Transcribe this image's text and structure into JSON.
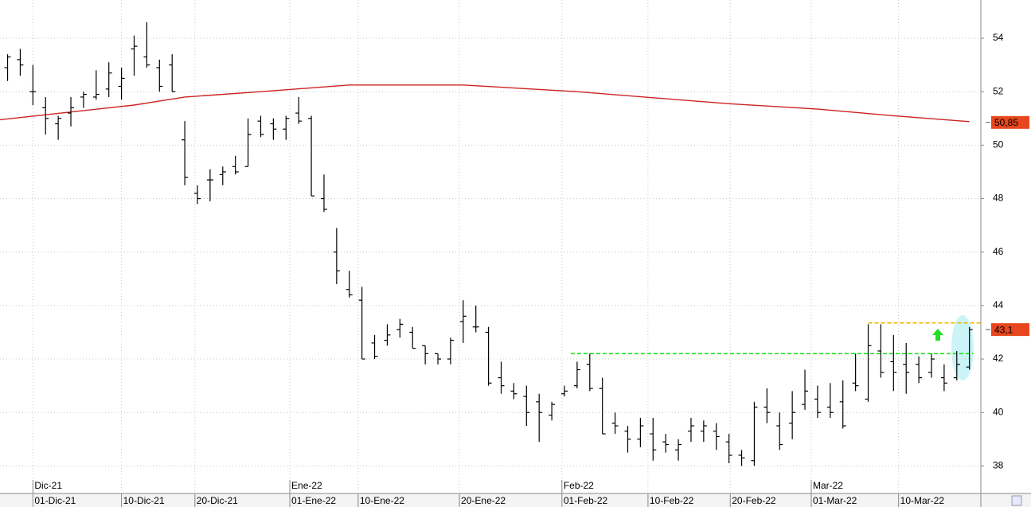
{
  "chart_data": {
    "type": "ohlc",
    "color": "#000000",
    "x": [
      0,
      1,
      2,
      3,
      4,
      5,
      6,
      7,
      8,
      9,
      10,
      11,
      12,
      13,
      14,
      15,
      16,
      17,
      18,
      19,
      20,
      21,
      22,
      23,
      24,
      25,
      26,
      27,
      28,
      29,
      30,
      31,
      32,
      33,
      34,
      35,
      36,
      37,
      38,
      39,
      40,
      41,
      42,
      43,
      44,
      45,
      46,
      47,
      48,
      49,
      50,
      51,
      52,
      53,
      54,
      55,
      56,
      57,
      58,
      59,
      60,
      61,
      62,
      63,
      64,
      65,
      66,
      67,
      68,
      69,
      70,
      71,
      72,
      73,
      74,
      75,
      76
    ],
    "open": [
      52.9,
      53.2,
      52.0,
      51.4,
      50.8,
      51.2,
      51.8,
      51.8,
      52.1,
      52.2,
      53.6,
      53.3,
      52.9,
      53.0,
      50.2,
      48.2,
      48.7,
      48.9,
      49.2,
      49.2,
      50.9,
      50.8,
      50.6,
      51.2,
      51.0,
      48.0,
      46.0,
      44.6,
      44.2,
      42.6,
      42.7,
      43.1,
      43.0,
      42.5,
      42.2,
      42.0,
      43.4,
      43.2,
      43.0,
      41.3,
      40.8,
      40.6,
      40.4,
      39.9,
      40.7,
      41.0,
      41.8,
      40.9,
      39.6,
      39.3,
      39.0,
      39.2,
      38.9,
      38.6,
      39.3,
      39.3,
      39.3,
      38.9,
      38.4,
      38.2,
      40.2,
      39.5,
      39.6,
      40.3,
      40.5,
      40.2,
      40.4,
      41.1,
      40.5,
      42.3,
      41.9,
      41.8,
      41.8,
      41.5,
      41.3,
      41.3,
      41.7
    ],
    "high": [
      53.4,
      53.6,
      53.0,
      51.8,
      51.1,
      51.8,
      52.0,
      52.8,
      53.1,
      52.9,
      54.1,
      54.6,
      53.2,
      53.4,
      50.9,
      48.5,
      49.1,
      49.2,
      49.6,
      51.0,
      51.1,
      51.0,
      51.1,
      51.8,
      51.1,
      48.9,
      46.9,
      45.3,
      44.7,
      42.9,
      43.3,
      43.5,
      43.2,
      42.5,
      42.2,
      42.8,
      44.2,
      44.0,
      43.2,
      41.9,
      41.1,
      41.0,
      40.7,
      40.4,
      41.0,
      41.9,
      42.2,
      41.3,
      40.0,
      39.5,
      39.8,
      39.8,
      39.2,
      39.0,
      39.8,
      39.7,
      39.6,
      39.2,
      38.6,
      40.4,
      40.9,
      40.0,
      40.8,
      41.6,
      41.0,
      41.1,
      41.2,
      42.2,
      43.3,
      43.3,
      42.9,
      42.6,
      42.1,
      42.2,
      41.8,
      42.3,
      43.2
    ],
    "low": [
      52.4,
      52.6,
      51.5,
      50.4,
      50.2,
      50.7,
      51.4,
      51.7,
      51.8,
      51.7,
      52.6,
      52.9,
      52.0,
      52.0,
      48.5,
      47.8,
      47.9,
      48.5,
      48.9,
      49.2,
      50.3,
      50.2,
      50.2,
      50.8,
      48.1,
      47.5,
      44.8,
      44.3,
      42.0,
      42.0,
      42.5,
      42.8,
      42.4,
      41.8,
      41.8,
      41.8,
      42.6,
      43.0,
      41.0,
      40.7,
      40.5,
      39.5,
      38.9,
      39.7,
      40.6,
      40.9,
      40.8,
      39.2,
      39.2,
      38.5,
      38.7,
      38.2,
      38.5,
      38.2,
      38.9,
      38.9,
      38.6,
      38.1,
      38.0,
      38.0,
      39.6,
      38.6,
      39.0,
      40.1,
      39.8,
      39.8,
      39.4,
      40.8,
      40.4,
      41.3,
      40.8,
      40.7,
      41.1,
      41.3,
      40.8,
      41.2,
      41.6
    ],
    "close": [
      53.3,
      53.0,
      52.0,
      51.0,
      51.0,
      51.4,
      51.9,
      51.9,
      52.7,
      52.5,
      53.7,
      53.0,
      52.2,
      52.0,
      48.8,
      48.0,
      48.7,
      49.0,
      49.0,
      50.4,
      50.4,
      50.6,
      51.0,
      50.9,
      48.1,
      47.6,
      45.3,
      44.4,
      42.0,
      42.1,
      42.9,
      43.3,
      42.4,
      42.2,
      42.0,
      42.7,
      43.6,
      43.2,
      41.1,
      41.0,
      40.7,
      40.0,
      40.0,
      40.3,
      40.8,
      41.6,
      40.9,
      39.2,
      39.5,
      39.0,
      39.5,
      38.6,
      38.8,
      38.8,
      39.5,
      39.5,
      39.1,
      38.4,
      38.3,
      40.2,
      40.0,
      38.8,
      40.0,
      40.8,
      40.0,
      40.0,
      39.5,
      41.0,
      42.5,
      41.5,
      41.5,
      41.5,
      41.3,
      42.0,
      41.1,
      41.8,
      43.1
    ],
    "moving_average": {
      "color": "#cc2222",
      "x": [
        -0.6,
        10,
        14,
        20,
        27,
        36,
        45,
        57,
        64,
        70,
        76
      ],
      "values": [
        50.95,
        51.5,
        51.8,
        52.0,
        52.25,
        52.25,
        52.0,
        51.55,
        51.35,
        51.1,
        50.88
      ]
    },
    "levels": [
      {
        "value": 42.2,
        "from": 44.5,
        "to": 76.3,
        "color": "#22dd22"
      },
      {
        "value": 43.35,
        "from": 68,
        "to": 77,
        "color": "#f0b400"
      }
    ],
    "price_labels": [
      {
        "value": 50.85,
        "label": "50,85",
        "color": "#e8461e"
      },
      {
        "value": 43.1,
        "label": "43,1",
        "color": "#e8461e"
      }
    ],
    "xlim": [
      -0.6,
      76.9
    ],
    "ylim": [
      36.97,
      55.43
    ],
    "yticks": [
      38,
      40,
      42,
      44,
      46,
      48,
      50,
      52,
      54
    ],
    "xticks": [
      {
        "value": 2.0,
        "label": "01-Dic-21"
      },
      {
        "value": 9.0,
        "label": "10-Dic-21"
      },
      {
        "value": 14.8,
        "label": "20-Dic-21"
      },
      {
        "value": 22.3,
        "label": "01-Ene-22"
      },
      {
        "value": 27.7,
        "label": "10-Ene-22"
      },
      {
        "value": 35.7,
        "label": "20-Ene-22"
      },
      {
        "value": 43.8,
        "label": "01-Feb-22"
      },
      {
        "value": 50.6,
        "label": "10-Feb-22"
      },
      {
        "value": 57.1,
        "label": "20-Feb-22"
      },
      {
        "value": 63.5,
        "label": "01-Mar-22"
      },
      {
        "value": 70.4,
        "label": "10-Mar-22"
      }
    ],
    "month_ticks": [
      {
        "value": 2.0,
        "label": "Dic-21"
      },
      {
        "value": 22.3,
        "label": "Ene-22"
      },
      {
        "value": 43.8,
        "label": "Feb-22"
      },
      {
        "value": 63.5,
        "label": "Mar-22"
      }
    ],
    "grid": true
  }
}
